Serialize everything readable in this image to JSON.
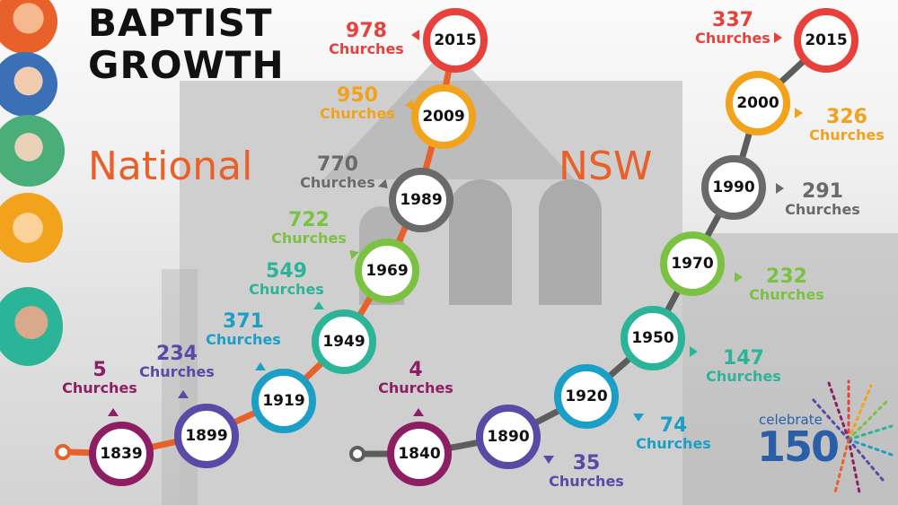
{
  "title": {
    "line1": "BAPTIST",
    "line2": "GROWTH"
  },
  "national": {
    "label": "National",
    "milestones": [
      {
        "year": "1839",
        "count": "5",
        "unit": "Churches",
        "color": "#8e1e64"
      },
      {
        "year": "1899",
        "count": "234",
        "unit": "Churches",
        "color": "#5a4aa6"
      },
      {
        "year": "1919",
        "count": "371",
        "unit": "Churches",
        "color": "#1b9fc6"
      },
      {
        "year": "1949",
        "count": "549",
        "unit": "Churches",
        "color": "#2bb497"
      },
      {
        "year": "1969",
        "count": "722",
        "unit": "Churches",
        "color": "#7cc242"
      },
      {
        "year": "1989",
        "count": "770",
        "unit": "Churches",
        "color": "#6a6a6a"
      },
      {
        "year": "2009",
        "count": "950",
        "unit": "Churches",
        "color": "#f3a21b"
      },
      {
        "year": "2015",
        "count": "978",
        "unit": "Churches",
        "color": "#e8413c"
      }
    ]
  },
  "nsw": {
    "label": "NSW",
    "milestones": [
      {
        "year": "1840",
        "count": "4",
        "unit": "Churches",
        "color": "#8e1e64"
      },
      {
        "year": "1890",
        "count": "35",
        "unit": "Churches",
        "color": "#5a4aa6"
      },
      {
        "year": "1920",
        "count": "74",
        "unit": "Churches",
        "color": "#1b9fc6"
      },
      {
        "year": "1950",
        "count": "147",
        "unit": "Churches",
        "color": "#2bb497"
      },
      {
        "year": "1970",
        "count": "232",
        "unit": "Churches",
        "color": "#7cc242"
      },
      {
        "year": "1990",
        "count": "291",
        "unit": "Churches",
        "color": "#6a6a6a"
      },
      {
        "year": "2000",
        "count": "326",
        "unit": "Churches",
        "color": "#f3a21b"
      },
      {
        "year": "2015",
        "count": "337",
        "unit": "Churches",
        "color": "#e8413c"
      }
    ]
  },
  "logo": {
    "small": "celebrate",
    "big": "150"
  },
  "avatars": [
    {
      "icon": "person-photo",
      "tint": "#e8602a"
    },
    {
      "icon": "person-photo",
      "tint": "#3b6fb6"
    },
    {
      "icon": "person-photo",
      "tint": "#4aae7a"
    },
    {
      "icon": "person-photo",
      "tint": "#f3a21b"
    },
    {
      "icon": "person-photo",
      "tint": "#2bb497"
    }
  ],
  "colors": {
    "national_line": "#e8602a",
    "nsw_line": "#5d5d5d"
  }
}
